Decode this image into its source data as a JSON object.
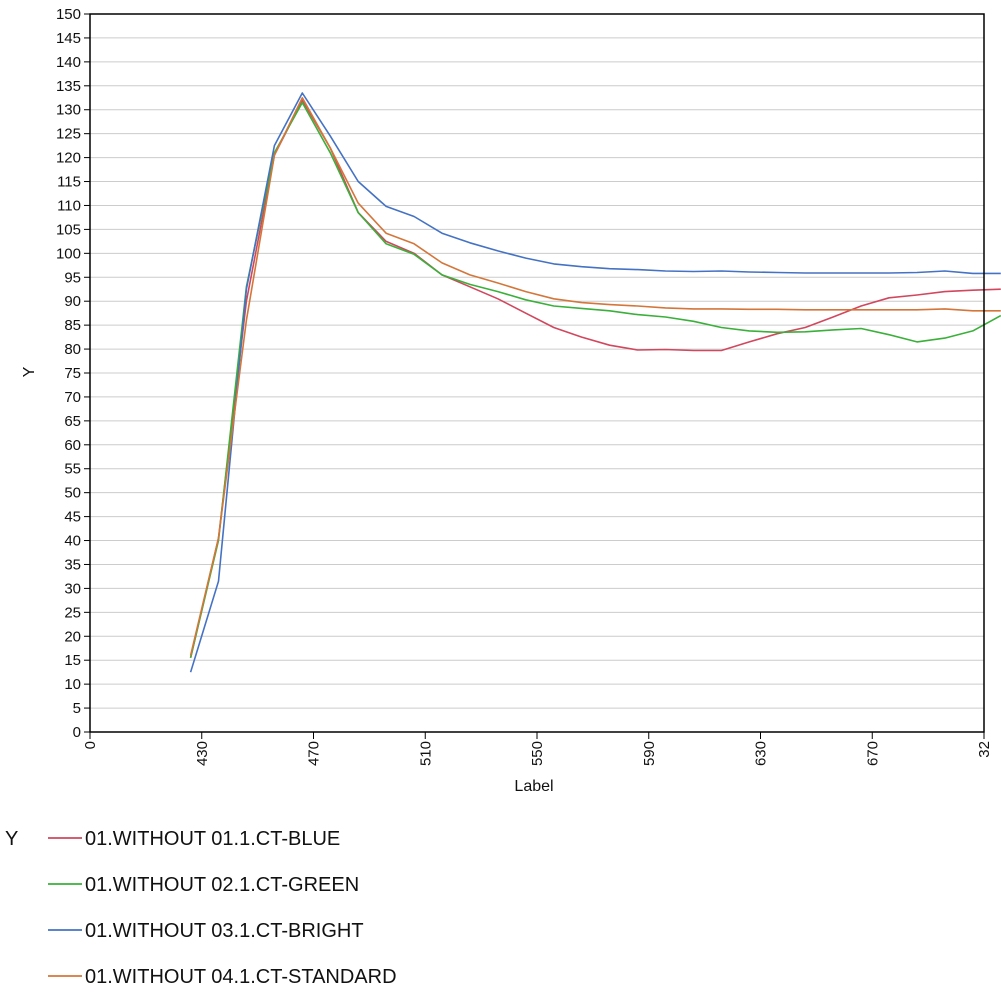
{
  "chart_data": {
    "type": "line",
    "title": "",
    "xlabel": "Label",
    "ylabel": "Y",
    "x_tick_labels": [
      "0",
      "430",
      "470",
      "510",
      "550",
      "590",
      "630",
      "670",
      "32"
    ],
    "ylim": [
      0,
      150
    ],
    "y_tick_step": 5,
    "grid": true,
    "legend_title": "Y",
    "legend_position": "bottom-left",
    "x": [
      "410",
      "420",
      "430",
      "440",
      "450",
      "460",
      "470",
      "480",
      "490",
      "500",
      "510",
      "520",
      "530",
      "540",
      "550",
      "560",
      "570",
      "580",
      "590",
      "600",
      "610",
      "620",
      "630",
      "640",
      "650",
      "660",
      "670",
      "680",
      "690",
      "700"
    ],
    "series": [
      {
        "name": "01.WITHOUT 01.1.CT-BLUE",
        "color": "#d1475e",
        "values": [
          15.5,
          40.5,
          90.0,
          120.5,
          132.0,
          122.0,
          108.5,
          102.5,
          100.0,
          95.5,
          93.0,
          90.5,
          87.5,
          84.5,
          82.5,
          80.8,
          79.8,
          79.9,
          79.7,
          79.7,
          81.5,
          83.2,
          84.5,
          86.7,
          89.0,
          90.7,
          91.3,
          92.0,
          92.3,
          92.5
        ]
      },
      {
        "name": "01.WITHOUT 02.1.CT-GREEN",
        "color": "#3ab03a",
        "values": [
          15.5,
          40.0,
          93.0,
          121.0,
          131.5,
          121.0,
          108.5,
          102.0,
          99.8,
          95.5,
          93.5,
          92.0,
          90.3,
          89.0,
          88.5,
          88.0,
          87.2,
          86.7,
          85.8,
          84.5,
          83.8,
          83.5,
          83.6,
          84.0,
          84.3,
          83.0,
          81.5,
          82.3,
          83.8,
          87.0
        ]
      },
      {
        "name": "01.WITHOUT 03.1.CT-BRIGHT",
        "color": "#4472c4",
        "values": [
          12.5,
          31.5,
          92.5,
          122.5,
          133.5,
          124.5,
          115.0,
          109.8,
          107.7,
          104.2,
          102.2,
          100.5,
          99.0,
          97.8,
          97.2,
          96.8,
          96.6,
          96.3,
          96.2,
          96.3,
          96.1,
          96.0,
          95.9,
          95.9,
          95.9,
          95.9,
          96.0,
          96.3,
          95.8,
          95.8
        ]
      },
      {
        "name": "01.WITHOUT 04.1.CT-STANDARD",
        "color": "#d4763a",
        "values": [
          16.0,
          40.5,
          86.0,
          120.5,
          132.5,
          122.0,
          110.5,
          104.2,
          102.0,
          98.0,
          95.5,
          93.8,
          92.0,
          90.5,
          89.7,
          89.3,
          89.0,
          88.6,
          88.4,
          88.4,
          88.3,
          88.3,
          88.2,
          88.2,
          88.2,
          88.2,
          88.2,
          88.4,
          88.0,
          88.0
        ]
      }
    ]
  }
}
